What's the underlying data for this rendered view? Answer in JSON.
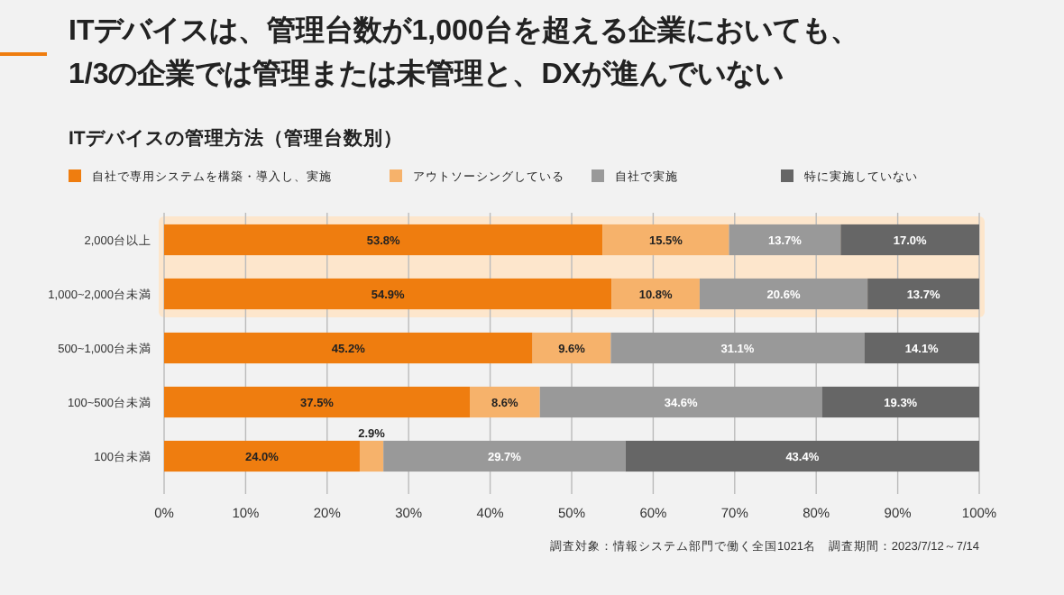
{
  "chart_data": {
    "type": "bar",
    "orientation": "horizontal",
    "stacked": true,
    "title": "ITデバイスは、管理台数が1,000台を超える企業においても、\n1/3の企業では管理または未管理と、DXが進んでいない",
    "subtitle": "ITデバイスの管理方法（管理台数別）",
    "categories": [
      "2,000台以上",
      "1,000~2,000台未満",
      "500~1,000台未満",
      "100~500台未満",
      "100台未満"
    ],
    "series": [
      {
        "name": "自社で専用システムを構築・導入し、実施",
        "color": "#ef7d0f",
        "values": [
          53.8,
          54.9,
          45.2,
          37.5,
          24.0
        ],
        "value_labels": [
          "53.8%",
          "54.9%",
          "45.2%",
          "37.5%",
          "24.0%"
        ]
      },
      {
        "name": "アウトソーシングしている",
        "color": "#f6b26b",
        "values": [
          15.5,
          10.8,
          9.6,
          8.6,
          2.9
        ],
        "value_labels": [
          "15.5%",
          "10.8%",
          "9.6%",
          "8.6%",
          "2.9%"
        ]
      },
      {
        "name": "自社で実施",
        "color": "#999999",
        "values": [
          13.7,
          20.6,
          31.1,
          34.6,
          29.7
        ],
        "value_labels": [
          "13.7%",
          "20.6%",
          "31.1%",
          "34.6%",
          "29.7%"
        ]
      },
      {
        "name": "特に実施していない",
        "color": "#666666",
        "values": [
          17.0,
          13.7,
          14.1,
          19.3,
          43.4
        ],
        "value_labels": [
          "17.0%",
          "13.7%",
          "14.1%",
          "19.3%",
          "43.4%"
        ]
      }
    ],
    "xlim": [
      0,
      100
    ],
    "xticks": [
      {
        "value": 0,
        "label": "0%"
      },
      {
        "value": 10,
        "label": "10%"
      },
      {
        "value": 20,
        "label": "20%"
      },
      {
        "value": 30,
        "label": "30%"
      },
      {
        "value": 40,
        "label": "40%"
      },
      {
        "value": 50,
        "label": "50%"
      },
      {
        "value": 60,
        "label": "60%"
      },
      {
        "value": 70,
        "label": "70%"
      },
      {
        "value": 80,
        "label": "80%"
      },
      {
        "value": 90,
        "label": "90%"
      },
      {
        "value": 100,
        "label": "100%"
      }
    ],
    "grid": "x",
    "legend": "top left",
    "bands": [
      {
        "axis": "y",
        "from": "2,000台以上",
        "to": "1,000~2,000台未満",
        "color": "#fde6cc"
      }
    ],
    "annotations": [
      "調査対象：情報システム部門で働く全国1021名　調査期間：2023/7/12～7/14"
    ]
  }
}
